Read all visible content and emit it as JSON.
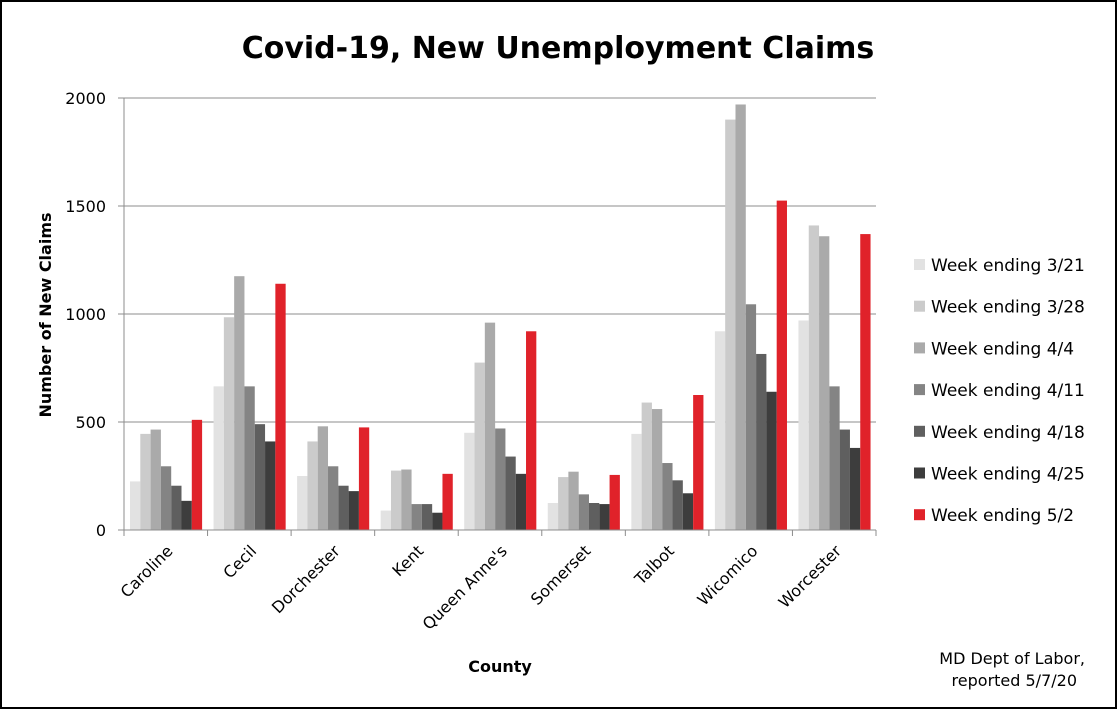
{
  "chart_data": {
    "type": "bar",
    "title": "Covid-19, New Unemployment Claims",
    "xlabel": "County",
    "ylabel": "Number of New Claims",
    "ylim": [
      0,
      2000
    ],
    "yticks": [
      0,
      500,
      1000,
      1500,
      2000
    ],
    "grid": true,
    "legend_position": "right",
    "categories": [
      "Caroline",
      "Cecil",
      "Dorchester",
      "Kent",
      "Queen Anne's",
      "Somerset",
      "Talbot",
      "Wicomico",
      "Worcester"
    ],
    "series": [
      {
        "name": "Week ending 3/21",
        "color": "#e2e2e2",
        "values": [
          225,
          665,
          250,
          90,
          450,
          125,
          445,
          920,
          970
        ]
      },
      {
        "name": "Week ending 3/28",
        "color": "#cbcbcb",
        "values": [
          445,
          985,
          410,
          275,
          775,
          245,
          590,
          1900,
          1410
        ]
      },
      {
        "name": "Week ending 4/4",
        "color": "#aaaaaa",
        "values": [
          465,
          1175,
          480,
          280,
          960,
          270,
          560,
          1970,
          1360
        ]
      },
      {
        "name": "Week ending 4/11",
        "color": "#848484",
        "values": [
          295,
          665,
          295,
          120,
          470,
          165,
          310,
          1045,
          665
        ]
      },
      {
        "name": "Week ending 4/18",
        "color": "#5f5f5f",
        "values": [
          205,
          490,
          205,
          120,
          340,
          125,
          230,
          815,
          465
        ]
      },
      {
        "name": "Week ending 4/25",
        "color": "#3d3d3d",
        "values": [
          135,
          410,
          180,
          80,
          260,
          120,
          170,
          640,
          380
        ]
      },
      {
        "name": "Week ending 5/2",
        "color": "#e0222a",
        "values": [
          510,
          1140,
          475,
          260,
          920,
          255,
          625,
          1525,
          1370
        ]
      }
    ],
    "source_note": [
      "MD Dept of Labor,",
      "reported 5/7/20"
    ]
  }
}
